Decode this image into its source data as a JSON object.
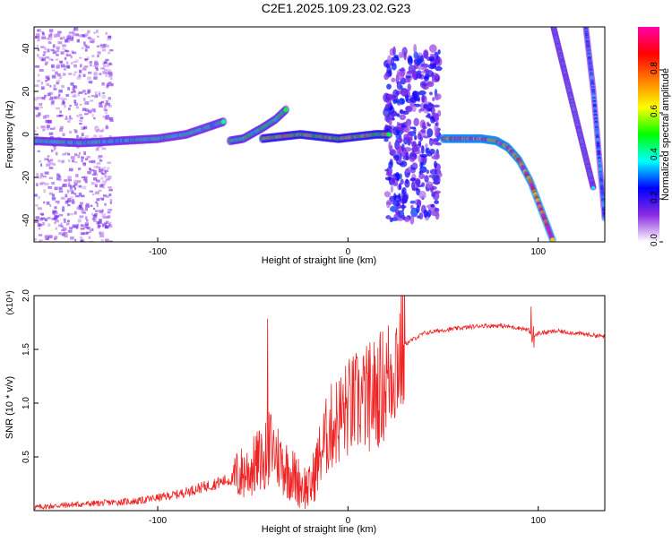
{
  "title": "C2E1.2025.109.23.02.G23",
  "chart_data": [
    {
      "type": "heatmap",
      "xlabel": "Height of straight line (km)",
      "ylabel": "Frequency (Hz)",
      "xlim": [
        -165,
        135
      ],
      "ylim": [
        -50,
        50
      ],
      "xticks": [
        -100,
        0,
        100
      ],
      "yticks": [
        -40,
        -20,
        0,
        20,
        40
      ],
      "colorbar": {
        "label": "Normalized spectral amplitude",
        "range": [
          0,
          1
        ],
        "ticks": [
          "0.0",
          "0.2",
          "0.4",
          "0.6",
          "0.8"
        ],
        "colors": [
          "#ffffff",
          "#8a2be2",
          "#0000ff",
          "#00ffff",
          "#00ff00",
          "#ffff00",
          "#ff8000",
          "#ff0000",
          "#ff00aa"
        ]
      },
      "ridges": [
        {
          "x": [
            -165,
            -140,
            -120,
            -100,
            -85,
            -75,
            -65
          ],
          "y": [
            -3,
            -4,
            -3,
            -2,
            0,
            3,
            6
          ],
          "amplitude": 0.4
        },
        {
          "x": [
            -62,
            -55,
            -45,
            -38,
            -32
          ],
          "y": [
            -3,
            -2,
            3,
            7,
            12
          ],
          "amplitude": 0.45
        },
        {
          "x": [
            -45,
            -35,
            -25,
            -15,
            -5,
            5,
            15,
            22
          ],
          "y": [
            -2,
            -1,
            0,
            -1,
            -2,
            -1,
            0,
            0
          ],
          "amplitude": 0.6
        },
        {
          "x": [
            50,
            60,
            70,
            78,
            84,
            90,
            96,
            102,
            108
          ],
          "y": [
            -2,
            -2,
            -2,
            -3,
            -6,
            -12,
            -22,
            -36,
            -50
          ],
          "amplitude": 0.9
        },
        {
          "x": [
            108,
            115,
            122,
            129
          ],
          "y": [
            50,
            25,
            0,
            -25
          ],
          "amplitude": 0.35
        },
        {
          "x": [
            125,
            129,
            132,
            135
          ],
          "y": [
            50,
            20,
            -10,
            -40
          ],
          "amplitude": 0.3
        }
      ]
    },
    {
      "type": "line",
      "xlabel": "Height of straight line (km)",
      "ylabel": "SNR (10 * v/v)",
      "y_multiplier": "(x10⁴)",
      "xlim": [
        -165,
        135
      ],
      "ylim": [
        0,
        2.0
      ],
      "xticks": [
        -100,
        0,
        100
      ],
      "yticks": [
        0.5,
        1.0,
        1.5,
        2.0
      ],
      "ytick_labels": [
        "0.5",
        "1.0",
        "1.5",
        "2.0"
      ],
      "color": "#ee2222",
      "x": [
        -165,
        -150,
        -130,
        -110,
        -100,
        -90,
        -80,
        -70,
        -60,
        -50,
        -45,
        -40,
        -35,
        -30,
        -25,
        -20,
        -15,
        -10,
        -5,
        0,
        5,
        10,
        15,
        20,
        25,
        30,
        40,
        50,
        60,
        70,
        80,
        90,
        95,
        97,
        100,
        110,
        120,
        135
      ],
      "y": [
        0.03,
        0.05,
        0.07,
        0.09,
        0.12,
        0.15,
        0.2,
        0.25,
        0.3,
        0.4,
        0.5,
        0.6,
        0.45,
        0.35,
        0.25,
        0.2,
        0.5,
        0.75,
        0.85,
        0.95,
        1.0,
        1.05,
        1.1,
        1.2,
        1.4,
        1.55,
        1.65,
        1.68,
        1.7,
        1.72,
        1.72,
        1.7,
        1.68,
        1.6,
        1.65,
        1.67,
        1.65,
        1.62
      ]
    }
  ]
}
